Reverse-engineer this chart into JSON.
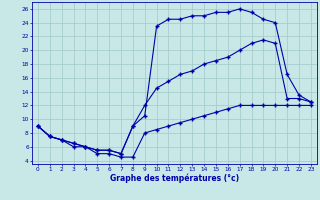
{
  "xlabel": "Graphe des températures (°c)",
  "xlim": [
    -0.5,
    23.5
  ],
  "ylim": [
    3.5,
    27
  ],
  "xticks": [
    0,
    1,
    2,
    3,
    4,
    5,
    6,
    7,
    8,
    9,
    10,
    11,
    12,
    13,
    14,
    15,
    16,
    17,
    18,
    19,
    20,
    21,
    22,
    23
  ],
  "yticks": [
    4,
    6,
    8,
    10,
    12,
    14,
    16,
    18,
    20,
    22,
    24,
    26
  ],
  "bg_color": "#c8e8e8",
  "line_color": "#0000aa",
  "grid_color": "#a0c8c8",
  "curve1_x": [
    0,
    1,
    2,
    3,
    4,
    5,
    6,
    7,
    8,
    9,
    10,
    11,
    12,
    13,
    14,
    15,
    16,
    17,
    18,
    19,
    20,
    21,
    22,
    23
  ],
  "curve1_y": [
    9.0,
    7.5,
    7.0,
    6.0,
    6.0,
    5.0,
    5.0,
    4.5,
    4.5,
    8.0,
    8.5,
    9.0,
    9.5,
    10.0,
    10.5,
    11.0,
    11.5,
    12.0,
    12.0,
    12.0,
    12.0,
    12.0,
    12.0,
    12.0
  ],
  "curve2_x": [
    0,
    1,
    2,
    3,
    4,
    5,
    6,
    7,
    8,
    9,
    10,
    11,
    12,
    13,
    14,
    15,
    16,
    17,
    18,
    19,
    20,
    21,
    22,
    23
  ],
  "curve2_y": [
    9.0,
    7.5,
    7.0,
    6.5,
    6.0,
    5.5,
    5.5,
    5.0,
    9.0,
    12.0,
    14.5,
    15.5,
    16.5,
    17.0,
    18.0,
    18.5,
    19.0,
    20.0,
    21.0,
    21.5,
    21.0,
    13.0,
    13.0,
    12.5
  ],
  "curve3_x": [
    0,
    1,
    2,
    3,
    4,
    5,
    6,
    7,
    8,
    9,
    10,
    11,
    12,
    13,
    14,
    15,
    16,
    17,
    18,
    19,
    20,
    21,
    22,
    23
  ],
  "curve3_y": [
    9.0,
    7.5,
    7.0,
    6.5,
    6.0,
    5.5,
    5.5,
    5.0,
    9.0,
    10.5,
    23.5,
    24.5,
    24.5,
    25.0,
    25.0,
    25.5,
    25.5,
    26.0,
    25.5,
    24.5,
    24.0,
    16.5,
    13.5,
    12.5
  ]
}
